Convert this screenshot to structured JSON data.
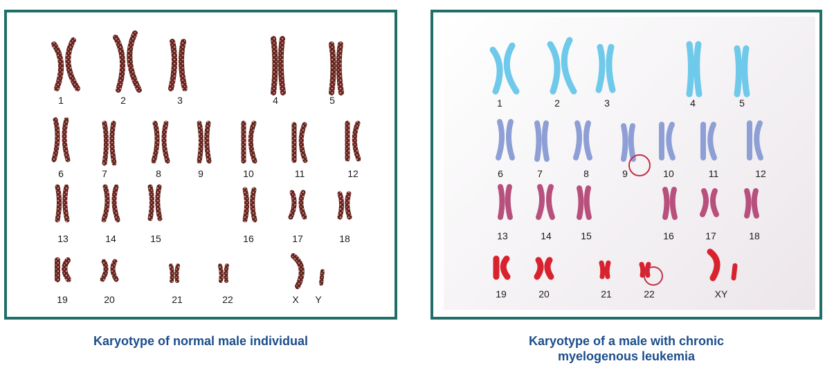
{
  "left_panel": {
    "caption": "Karyotype of normal male individual",
    "labels": [
      "1",
      "2",
      "3",
      "4",
      "5",
      "6",
      "7",
      "8",
      "9",
      "10",
      "11",
      "12",
      "13",
      "14",
      "15",
      "16",
      "17",
      "18",
      "19",
      "20",
      "21",
      "22",
      "X",
      "Y"
    ]
  },
  "right_panel": {
    "caption_line1": "Karyotype of a male with chronic",
    "caption_line2": "myelogenous leukemia",
    "labels": [
      "1",
      "2",
      "3",
      "4",
      "5",
      "6",
      "7",
      "8",
      "9",
      "10",
      "11",
      "12",
      "13",
      "14",
      "15",
      "16",
      "17",
      "18",
      "19",
      "20",
      "21",
      "22",
      "XY"
    ]
  },
  "colors": {
    "border": "#1f6f68",
    "caption": "#1b4d8c",
    "normal_chromosome": "#5a2418",
    "normal_band": "#d97a8a",
    "cml_row1": "#6ec9ea",
    "cml_row2": "#8e9fd6",
    "cml_row3": "#b8507e",
    "cml_row4": "#d8232f",
    "highlight_circle": "#c0304a"
  }
}
